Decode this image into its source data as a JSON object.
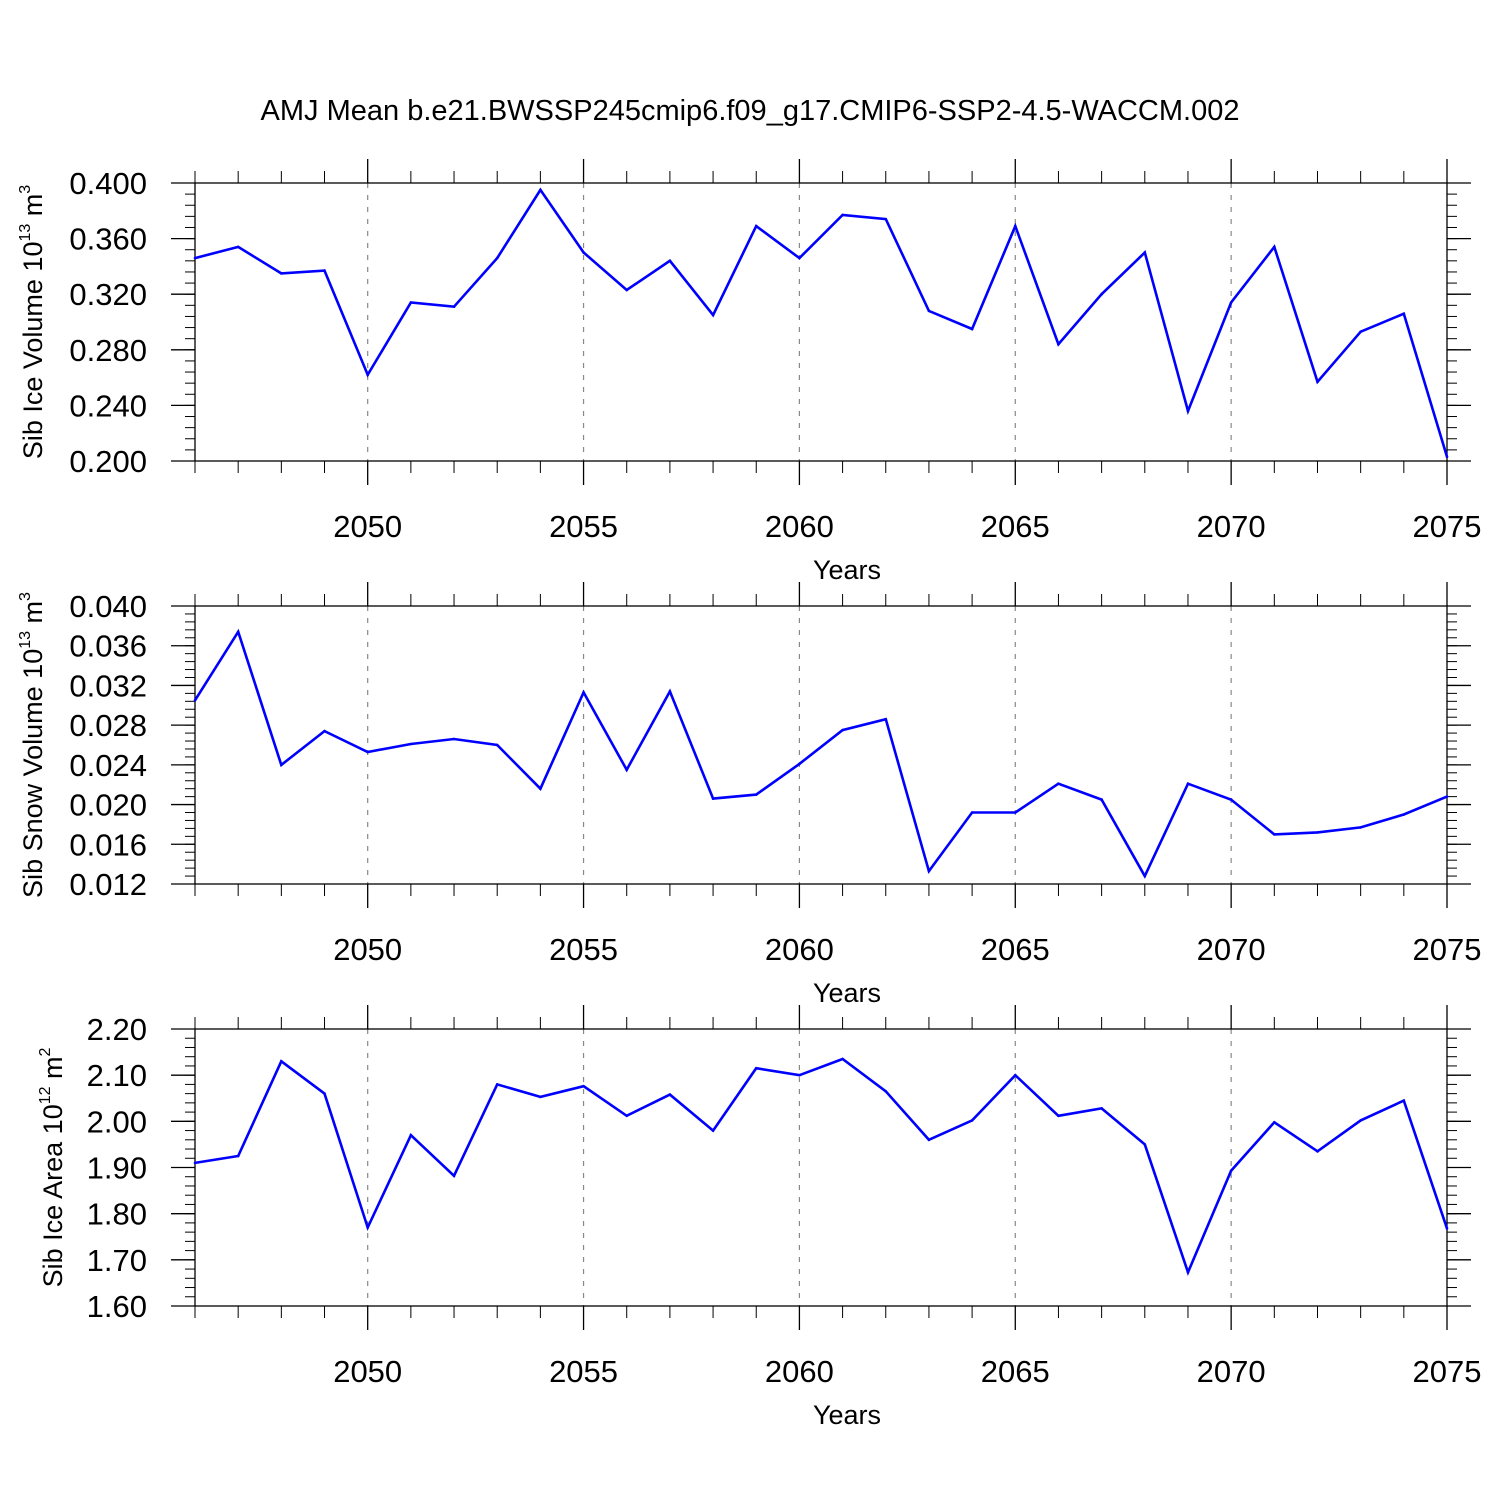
{
  "title": "AMJ Mean b.e21.BWSSP245cmip6.f09_g17.CMIP6-SSP2-4.5-WACCM.002",
  "colors": {
    "line": "#0000ff",
    "axis": "#000000",
    "grid": "#888888"
  },
  "chart_data": [
    {
      "type": "line",
      "ylabel_main": "Sib Ice Volume 10",
      "ylabel_exp": "13",
      "ylabel_unit": " m",
      "ylabel_unit_exp": "3",
      "xlabel": "Years",
      "xlim": [
        2046,
        2075
      ],
      "ylim": [
        0.2,
        0.4
      ],
      "yticks": [
        0.2,
        0.24,
        0.28,
        0.32,
        0.36,
        0.4
      ],
      "ytick_labels": [
        "0.200",
        "0.240",
        "0.280",
        "0.320",
        "0.360",
        "0.400"
      ],
      "xticks": [
        2050,
        2055,
        2060,
        2065,
        2070,
        2075
      ],
      "xtick_labels": [
        "2050",
        "2055",
        "2060",
        "2065",
        "2070",
        "2075"
      ],
      "x": [
        2046,
        2047,
        2048,
        2049,
        2050,
        2051,
        2052,
        2053,
        2054,
        2055,
        2056,
        2057,
        2058,
        2059,
        2060,
        2061,
        2062,
        2063,
        2064,
        2065,
        2066,
        2067,
        2068,
        2069,
        2070,
        2071,
        2072,
        2073,
        2074,
        2075
      ],
      "values": [
        0.346,
        0.354,
        0.335,
        0.337,
        0.262,
        0.314,
        0.311,
        0.346,
        0.395,
        0.35,
        0.323,
        0.344,
        0.305,
        0.369,
        0.346,
        0.377,
        0.374,
        0.308,
        0.295,
        0.369,
        0.284,
        0.32,
        0.35,
        0.236,
        0.314,
        0.354,
        0.257,
        0.293,
        0.306,
        0.203
      ]
    },
    {
      "type": "line",
      "ylabel_main": "Sib Snow Volume 10",
      "ylabel_exp": "13",
      "ylabel_unit": " m",
      "ylabel_unit_exp": "3",
      "xlabel": "Years",
      "xlim": [
        2046,
        2075
      ],
      "ylim": [
        0.012,
        0.04
      ],
      "yticks": [
        0.012,
        0.016,
        0.02,
        0.024,
        0.028,
        0.032,
        0.036,
        0.04
      ],
      "ytick_labels": [
        "0.012",
        "0.016",
        "0.020",
        "0.024",
        "0.028",
        "0.032",
        "0.036",
        "0.040"
      ],
      "xticks": [
        2050,
        2055,
        2060,
        2065,
        2070,
        2075
      ],
      "xtick_labels": [
        "2050",
        "2055",
        "2060",
        "2065",
        "2070",
        "2075"
      ],
      "x": [
        2046,
        2047,
        2048,
        2049,
        2050,
        2051,
        2052,
        2053,
        2054,
        2055,
        2056,
        2057,
        2058,
        2059,
        2060,
        2061,
        2062,
        2063,
        2064,
        2065,
        2066,
        2067,
        2068,
        2069,
        2070,
        2071,
        2072,
        2073,
        2074,
        2075
      ],
      "values": [
        0.0305,
        0.0374,
        0.024,
        0.0274,
        0.0253,
        0.0261,
        0.0266,
        0.026,
        0.0216,
        0.0313,
        0.0235,
        0.0314,
        0.0206,
        0.021,
        0.0241,
        0.0275,
        0.0286,
        0.0133,
        0.0192,
        0.0192,
        0.0221,
        0.0205,
        0.0128,
        0.0221,
        0.0205,
        0.017,
        0.0172,
        0.0177,
        0.019,
        0.0208
      ]
    },
    {
      "type": "line",
      "ylabel_main": "Sib Ice Area 10",
      "ylabel_exp": "12",
      "ylabel_unit": " m",
      "ylabel_unit_exp": "2",
      "xlabel": "Years",
      "xlim": [
        2046,
        2075
      ],
      "ylim": [
        1.6,
        2.2
      ],
      "yticks": [
        1.6,
        1.7,
        1.8,
        1.9,
        2.0,
        2.1,
        2.2
      ],
      "ytick_labels": [
        "1.60",
        "1.70",
        "1.80",
        "1.90",
        "2.00",
        "2.10",
        "2.20"
      ],
      "xticks": [
        2050,
        2055,
        2060,
        2065,
        2070,
        2075
      ],
      "xtick_labels": [
        "2050",
        "2055",
        "2060",
        "2065",
        "2070",
        "2075"
      ],
      "x": [
        2046,
        2047,
        2048,
        2049,
        2050,
        2051,
        2052,
        2053,
        2054,
        2055,
        2056,
        2057,
        2058,
        2059,
        2060,
        2061,
        2062,
        2063,
        2064,
        2065,
        2066,
        2067,
        2068,
        2069,
        2070,
        2071,
        2072,
        2073,
        2074,
        2075
      ],
      "values": [
        1.91,
        1.925,
        2.13,
        2.06,
        1.77,
        1.97,
        1.882,
        2.08,
        2.053,
        2.076,
        2.012,
        2.058,
        1.98,
        2.115,
        2.1,
        2.135,
        2.065,
        1.96,
        2.002,
        2.1,
        2.012,
        2.028,
        1.95,
        1.673,
        1.893,
        1.998,
        1.935,
        2.002,
        2.045,
        1.768
      ]
    }
  ]
}
